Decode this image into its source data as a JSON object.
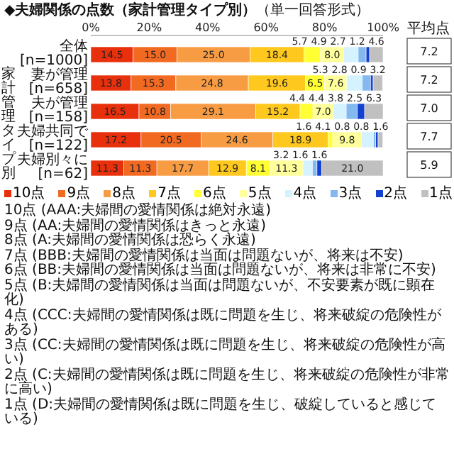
{
  "chart_data": {
    "type": "bar",
    "orientation": "horizontal",
    "stacked": true,
    "title": "◆夫婦関係の点数（家計管理タイプ別）",
    "subtitle": "（単一回答形式）",
    "categories": [
      "全体[n=1000]",
      "妻が管理[n=658]",
      "夫が管理[n=158]",
      "夫婦共同で[n=122]",
      "夫婦別々に[n=62]"
    ],
    "series": [
      {
        "name": "10点",
        "color": "#e8300c",
        "values": [
          14.5,
          13.8,
          16.5,
          17.2,
          11.3
        ],
        "value_labels": [
          "14.5",
          "13.8",
          "16.5",
          "17.2",
          "11.3"
        ]
      },
      {
        "name": "9点",
        "color": "#f26a22",
        "values": [
          15.0,
          15.3,
          10.8,
          20.5,
          11.3
        ],
        "value_labels": [
          "15.0",
          "15.3",
          "10.8",
          "20.5",
          "11.3"
        ]
      },
      {
        "name": "8点",
        "color": "#f89c44",
        "values": [
          25.0,
          24.8,
          29.1,
          24.6,
          17.7
        ],
        "value_labels": [
          "25.0",
          "24.8",
          "29.1",
          "24.6",
          "17.7"
        ]
      },
      {
        "name": "7点",
        "color": "#ffc81e",
        "values": [
          18.4,
          19.6,
          15.2,
          18.9,
          12.9
        ],
        "value_labels": [
          "18.4",
          "19.6",
          "15.2",
          "18.9",
          "12.9"
        ]
      },
      {
        "name": "6点",
        "color": "#ffff33",
        "values": [
          5.7,
          6.5,
          4.4,
          1.6,
          8.1
        ],
        "value_labels": [
          "5.7",
          "6.5",
          "4.4",
          "1.6",
          "8.1"
        ]
      },
      {
        "name": "5点",
        "color": "#ffff9c",
        "values": [
          8.0,
          7.6,
          7.0,
          9.8,
          11.3
        ],
        "value_labels": [
          "8.0",
          "7.6",
          "7.0",
          "9.8",
          "11.3"
        ]
      },
      {
        "name": "4点",
        "color": "#d4f2ff",
        "values": [
          4.9,
          5.3,
          4.4,
          4.1,
          3.2
        ],
        "value_labels": [
          "4.9",
          "5.3",
          "4.4",
          "4.1",
          "3.2"
        ]
      },
      {
        "name": "3点",
        "color": "#84b8f0",
        "values": [
          2.7,
          2.8,
          3.8,
          0.8,
          1.6
        ],
        "value_labels": [
          "2.7",
          "2.8",
          "3.8",
          "0.8",
          "1.6"
        ]
      },
      {
        "name": "2点",
        "color": "#1442d0",
        "values": [
          1.2,
          0.9,
          2.5,
          0.8,
          1.6
        ],
        "value_labels": [
          "1.2",
          "0.9",
          "2.5",
          "0.8",
          "1.6"
        ]
      },
      {
        "name": "1点",
        "color": "#c0c0c0",
        "values": [
          4.6,
          3.2,
          6.3,
          1.6,
          21.0
        ],
        "value_labels": [
          "4.6",
          "3.2",
          "6.3",
          "1.6",
          "21.0"
        ]
      }
    ],
    "xlim": [
      0,
      100
    ],
    "xticks": [
      {
        "value": 0,
        "label": "0%"
      },
      {
        "value": 20,
        "label": "20%"
      },
      {
        "value": 40,
        "label": "40%"
      },
      {
        "value": 60,
        "label": "60%"
      },
      {
        "value": 80,
        "label": "80%"
      },
      {
        "value": 100,
        "label": "100%"
      }
    ],
    "data_labels": true,
    "legend": "bottom",
    "annotations": [
      "家計管理タイプ別",
      "平均点",
      "7.2",
      "7.2",
      "7.0",
      "7.7",
      "5.9",
      "10点 (AAA:夫婦間の愛情関係は絶対永遠)",
      "9点 (AA:夫婦間の愛情関係はきっと永遠)",
      "8点 (A:夫婦間の愛情関係は恐らく永遠)",
      "7点 (BBB:夫婦間の愛情関係は当面は問題ないが、将来は不安)",
      "6点 (BB:夫婦間の愛情関係は当面は問題ないが、将来は非常に不安)",
      "5点 (B:夫婦間の愛情関係は当面は問題ないが、不安要素が既に顕在化)",
      "4点 (CCC:夫婦間の愛情関係は既に問題を生じ、将来破綻の危険性がある)",
      "3点 (CC:夫婦間の愛情関係は既に問題を生じ、将来破綻の危険性が高い)",
      "2点 (C:夫婦間の愛情関係は既に問題を生じ、将来破綻の危険性が非常に高い)",
      "1点 (D:夫婦間の愛情関係は既に問題を生じ、破綻していると感じている)"
    ]
  }
}
